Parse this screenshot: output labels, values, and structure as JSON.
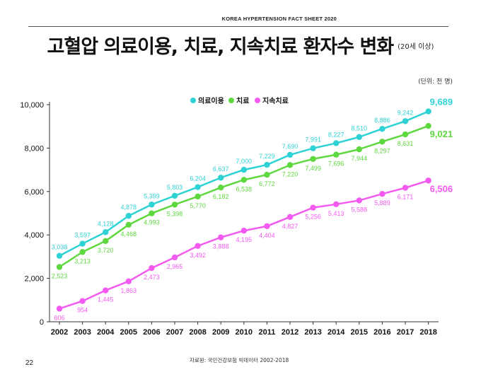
{
  "header": {
    "title": "KOREA HYPERTENSION FACT SHEET 2020"
  },
  "page": {
    "title": "고혈압 의료이용, 치료, 지속치료 환자수 변화",
    "subtitle": "(20세 이상)",
    "unit": "(단위: 천 명)",
    "source": "자료원: 국민건강보험 빅데이터 2002-2018",
    "page_number": "22"
  },
  "colors": {
    "series1": "#2ED2D5",
    "series2": "#5FD83F",
    "series3": "#F35AF0",
    "axis": "#333333",
    "grid": "#D0D0D0"
  },
  "chart_data": {
    "type": "line",
    "title": "고혈압 의료이용, 치료, 지속치료 환자수 변화",
    "xlabel": "",
    "ylabel": "",
    "ylim": [
      0,
      10000
    ],
    "yticks": [
      0,
      2000,
      4000,
      6000,
      8000,
      10000
    ],
    "ytick_labels": [
      "0",
      "2,000",
      "4,000",
      "6,000",
      "8,000",
      "10,000"
    ],
    "legend_position": "top-center",
    "grid": false,
    "categories": [
      "2002",
      "2003",
      "2004",
      "2005",
      "2006",
      "2007",
      "2008",
      "2009",
      "2010",
      "2011",
      "2012",
      "2013",
      "2014",
      "2015",
      "2016",
      "2017",
      "2018"
    ],
    "series": [
      {
        "name": "의료이용",
        "color": "#2ED2D5",
        "values": [
          3038,
          3597,
          4128,
          4878,
          5399,
          5803,
          6204,
          6637,
          7000,
          7229,
          7690,
          7991,
          8227,
          8510,
          8886,
          9242,
          9689
        ],
        "labels": [
          "3,038",
          "3,597",
          "4,128",
          "4,878",
          "5,399",
          "5,803",
          "6,204",
          "6,637",
          "7,000",
          "7,229",
          "7,690",
          "7,991",
          "8,227",
          "8,510",
          "8,886",
          "9,242",
          "9,689"
        ]
      },
      {
        "name": "치료",
        "color": "#5FD83F",
        "values": [
          2523,
          3213,
          3720,
          4468,
          4993,
          5398,
          5770,
          6182,
          6538,
          6772,
          7220,
          7499,
          7696,
          7944,
          8297,
          8631,
          9021
        ],
        "labels": [
          "2,523",
          "3,213",
          "3,720",
          "4,468",
          "4,993",
          "5,398",
          "5,770",
          "6,182",
          "6,538",
          "6,772",
          "7,220",
          "7,499",
          "7,696",
          "7,944",
          "8,297",
          "8,631",
          "9,021"
        ]
      },
      {
        "name": "지속치료",
        "color": "#F35AF0",
        "values": [
          606,
          954,
          1445,
          1863,
          2473,
          2965,
          3492,
          3888,
          4195,
          4404,
          4827,
          5256,
          5413,
          5588,
          5889,
          6171,
          6506
        ],
        "labels": [
          "606",
          "954",
          "1,445",
          "1,863",
          "2,473",
          "2,965",
          "3,492",
          "3,888",
          "4,195",
          "4,404",
          "4,827",
          "5,256",
          "5,413",
          "5,588",
          "5,889",
          "6,171",
          "6,506"
        ]
      }
    ]
  }
}
